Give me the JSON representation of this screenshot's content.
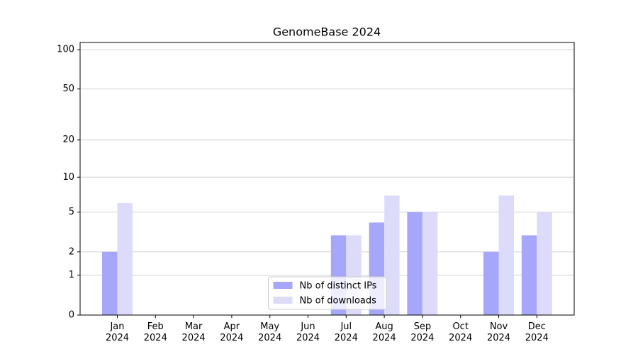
{
  "chart_data": {
    "type": "bar",
    "title": "GenomeBase 2024",
    "categories": [
      "Jan 2024",
      "Feb 2024",
      "Mar 2024",
      "Apr 2024",
      "May 2024",
      "Jun 2024",
      "Jul 2024",
      "Aug 2024",
      "Sep 2024",
      "Oct 2024",
      "Nov 2024",
      "Dec 2024"
    ],
    "series": [
      {
        "name": "Nb of distinct IPs",
        "color": "#a6a6fb",
        "values": [
          2,
          0,
          0,
          0,
          0,
          0,
          3,
          4,
          5,
          0,
          2,
          3
        ]
      },
      {
        "name": "Nb of downloads",
        "color": "#dcdcfa",
        "values": [
          6,
          0,
          0,
          0,
          0,
          0,
          3,
          7,
          5,
          0,
          7,
          5
        ]
      }
    ],
    "yscale": "log1p",
    "ylim": [
      0,
      113.5
    ],
    "yticks": [
      0,
      1,
      2,
      5,
      10,
      20,
      50,
      100
    ],
    "grid": true,
    "legend": "lower center"
  }
}
